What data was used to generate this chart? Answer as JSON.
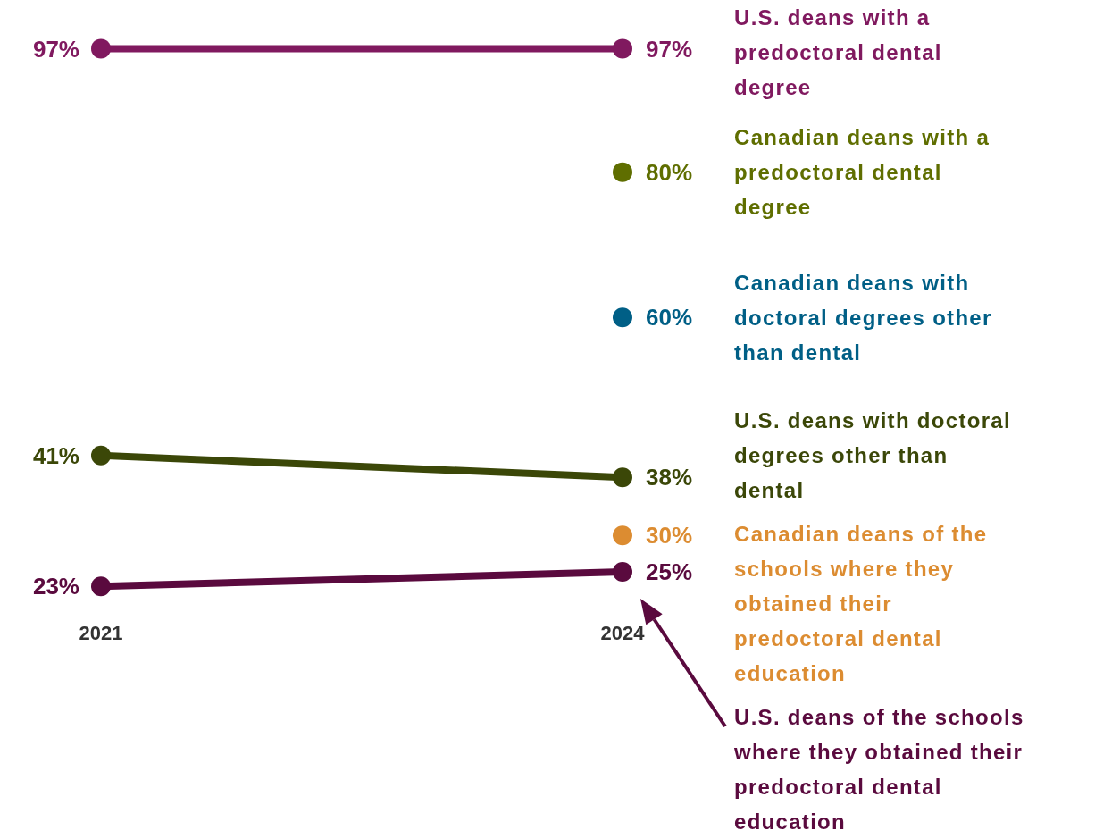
{
  "chart_data": {
    "type": "line",
    "categories": [
      "2021",
      "2024"
    ],
    "grid": false,
    "legend": false,
    "marker": "circle",
    "series": [
      {
        "name": "U.S. deans with a predoctoral dental degree",
        "color": "#80195f",
        "values": [
          97,
          97
        ],
        "value_labels": [
          "97%",
          "97%"
        ]
      },
      {
        "name": "Canadian deans with a predoctoral dental degree",
        "color": "#5f6e00",
        "values": [
          null,
          80
        ],
        "value_labels": [
          null,
          "80%"
        ]
      },
      {
        "name": "Canadian deans with doctoral degrees other than dental",
        "color": "#005f86",
        "values": [
          null,
          60
        ],
        "value_labels": [
          null,
          "60%"
        ]
      },
      {
        "name": "U.S. deans with doctoral degrees other than dental",
        "color": "#3b4708",
        "values": [
          41,
          38
        ],
        "value_labels": [
          "41%",
          "38%"
        ]
      },
      {
        "name": "Canadian deans of the schools where they obtained their predoctoral dental education",
        "color": "#dc8c31",
        "values": [
          null,
          30
        ],
        "value_labels": [
          null,
          "30%"
        ]
      },
      {
        "name": "U.S. deans of the schools where they obtained their predoctoral dental education",
        "color": "#5a0a3e",
        "values": [
          23,
          25
        ],
        "value_labels": [
          "23%",
          "25%"
        ]
      }
    ]
  }
}
